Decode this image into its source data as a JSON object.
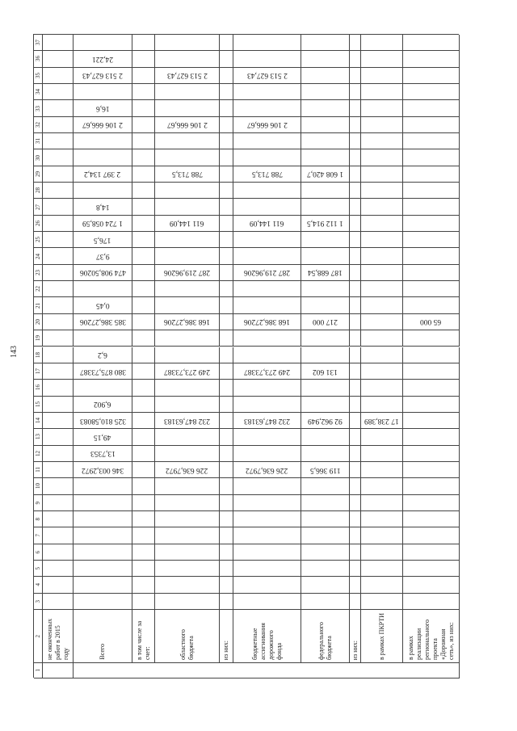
{
  "page_number": "143",
  "headers": {
    "n": "2",
    "A": "не оконченных работ в 2015 году",
    "B": "Всего",
    "C": "в том числе за счет:",
    "D": "областного бюджета",
    "E": "из них:",
    "F": "бюджетные ассигнования дорожного фонда",
    "G": "федерального бюджета",
    "H": "из них:",
    "I": "в рамках ПКРТИ",
    "J": "в рамках реализации регионального проекта «Дорожная сеть», из них:"
  },
  "first_row_number": "1",
  "rows": [
    {
      "n": "37"
    },
    {
      "n": "36",
      "B": "24,221"
    },
    {
      "n": "35",
      "B": "2 513 627,43",
      "D": "2 513 627,43",
      "F": "2 513 627,43"
    },
    {
      "n": "34"
    },
    {
      "n": "33",
      "B": "16,6"
    },
    {
      "n": "32",
      "B": "2 106 666,67",
      "D": "2 106 666,67",
      "F": "2 106 666,67"
    },
    {
      "n": "31"
    },
    {
      "n": "30"
    },
    {
      "n": "29",
      "B": "2 397 134,2",
      "D": "788 713,5",
      "F": "788 713,5",
      "G": "1 608 420,7"
    },
    {
      "n": "28"
    },
    {
      "n": "27",
      "B": "14,8"
    },
    {
      "n": "26",
      "B": "1 724 058,59",
      "D": "611 144,09",
      "F": "611 144,09",
      "G": "1 112 914,5"
    },
    {
      "n": "25",
      "B": "176,5"
    },
    {
      "n": "24",
      "B": "9,37"
    },
    {
      "n": "23",
      "B": "474 908,50206",
      "D": "287 219,96206",
      "F": "287 219,96206",
      "G": "187 688,54"
    },
    {
      "n": "22"
    },
    {
      "n": "21",
      "B": "0,45"
    },
    {
      "n": "20",
      "B": "385 386,27206",
      "D": "168 386,27206",
      "F": "168 386,27206",
      "G": "217 000",
      "J": "65 000"
    },
    {
      "n": "19"
    },
    {
      "n": "18",
      "B": "6,2"
    },
    {
      "n": "17",
      "B": "380 875,73387",
      "D": "249 273,73387",
      "F": "249 273,73387",
      "G": "131 602"
    },
    {
      "n": "16"
    },
    {
      "n": "15",
      "B": "6,902"
    },
    {
      "n": "14",
      "B": "325 810,58083",
      "D": "232 847,63183",
      "F": "232 847,63183",
      "G": "92 962,949",
      "I": "17 238,389"
    },
    {
      "n": "13",
      "B": "49,15"
    },
    {
      "n": "12",
      "B": "13,7353"
    },
    {
      "n": "11",
      "B": "346 003,2972",
      "D": "226 636,7972",
      "F": "226 636,7972",
      "G": "119 366,5"
    },
    {
      "n": "10"
    },
    {
      "n": "9"
    },
    {
      "n": "8"
    },
    {
      "n": "7"
    },
    {
      "n": "6"
    },
    {
      "n": "5"
    },
    {
      "n": "4"
    },
    {
      "n": "3"
    }
  ]
}
